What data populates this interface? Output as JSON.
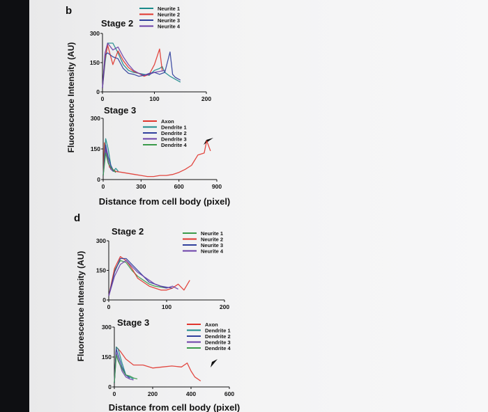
{
  "panels": [
    {
      "letter": "b",
      "ylabel": "Fluorescence Intensity (AU)",
      "xlabel": "Distance from cell body (pixel)"
    },
    {
      "letter": "d",
      "ylabel": "Fluorescence Intensity (AU)",
      "xlabel": "Distance from cell body (pixel)"
    }
  ],
  "chart_data": [
    {
      "type": "line",
      "panel": "b",
      "title": "Stage 2",
      "xlim": [
        0,
        200
      ],
      "ylim": [
        0,
        300
      ],
      "x_ticks": [
        "0",
        "100",
        "200"
      ],
      "y_ticks": [
        "0",
        "150",
        "300"
      ],
      "series": [
        {
          "name": "Neurite 1",
          "color": "#1a8a8a",
          "x": [
            0,
            5,
            10,
            20,
            30,
            40,
            50,
            60,
            70,
            80,
            90,
            100,
            110,
            115,
            120,
            130,
            140,
            150
          ],
          "y": [
            20,
            150,
            250,
            250,
            200,
            140,
            110,
            100,
            95,
            90,
            85,
            110,
            120,
            130,
            100,
            80,
            65,
            50
          ]
        },
        {
          "name": "Neurite 2",
          "color": "#e0342c",
          "x": [
            0,
            5,
            10,
            20,
            30,
            40,
            50,
            60,
            70,
            80,
            90,
            100,
            110,
            115
          ],
          "y": [
            20,
            170,
            240,
            140,
            210,
            160,
            125,
            105,
            95,
            80,
            90,
            140,
            220,
            110
          ]
        },
        {
          "name": "Neurite 3",
          "color": "#2f3f9c",
          "x": [
            0,
            5,
            10,
            20,
            30,
            40,
            50,
            60,
            70,
            80,
            90,
            100,
            110,
            120,
            130,
            135,
            140,
            150
          ],
          "y": [
            20,
            190,
            200,
            180,
            170,
            120,
            95,
            90,
            80,
            85,
            95,
            100,
            90,
            100,
            205,
            90,
            75,
            60
          ]
        },
        {
          "name": "Neurite 4",
          "color": "#6a3fa8",
          "x": [
            0,
            5,
            10,
            20,
            30,
            40,
            50,
            60,
            70,
            80,
            90,
            100,
            110,
            120
          ],
          "y": [
            20,
            200,
            250,
            215,
            230,
            180,
            140,
            110,
            95,
            85,
            90,
            100,
            105,
            110
          ]
        }
      ]
    },
    {
      "type": "line",
      "panel": "b",
      "title": "Stage 3",
      "xlim": [
        0,
        900
      ],
      "ylim": [
        0,
        300
      ],
      "x_ticks": [
        "0",
        "300",
        "600",
        "900"
      ],
      "y_ticks": [
        "0",
        "150",
        "300"
      ],
      "series": [
        {
          "name": "Axon",
          "color": "#e0342c",
          "x": [
            0,
            10,
            50,
            100,
            150,
            200,
            250,
            300,
            350,
            400,
            450,
            500,
            550,
            600,
            650,
            700,
            750,
            800,
            820,
            850
          ],
          "y": [
            20,
            180,
            60,
            40,
            35,
            30,
            25,
            20,
            15,
            15,
            20,
            20,
            25,
            35,
            50,
            70,
            120,
            130,
            190,
            140
          ]
        },
        {
          "name": "Dendrite 1",
          "color": "#1a8a8a",
          "x": [
            0,
            20,
            40,
            60,
            80,
            100,
            120
          ],
          "y": [
            20,
            200,
            150,
            70,
            40,
            55,
            40
          ]
        },
        {
          "name": "Dendrite 2",
          "color": "#2f3f9c",
          "x": [
            0,
            20,
            40,
            60,
            80,
            100
          ],
          "y": [
            20,
            170,
            110,
            70,
            45,
            35
          ]
        },
        {
          "name": "Dendrite 3",
          "color": "#6a3fa8",
          "x": [
            0,
            20,
            40,
            60,
            80
          ],
          "y": [
            20,
            150,
            90,
            50,
            40
          ]
        },
        {
          "name": "Dendrite 4",
          "color": "#3a9a4a",
          "x": [
            0,
            20,
            40,
            60,
            80,
            100
          ],
          "y": [
            20,
            130,
            80,
            60,
            45,
            35
          ]
        }
      ]
    },
    {
      "type": "line",
      "panel": "d",
      "title": "Stage 2",
      "xlim": [
        0,
        200
      ],
      "ylim": [
        0,
        300
      ],
      "x_ticks": [
        "0",
        "100",
        "200"
      ],
      "y_ticks": [
        "0",
        "150",
        "300"
      ],
      "series": [
        {
          "name": "Neurite 1",
          "color": "#3a9a4a",
          "x": [
            0,
            10,
            20,
            30,
            40,
            50,
            60,
            70,
            80,
            90,
            100
          ],
          "y": [
            20,
            150,
            200,
            190,
            150,
            120,
            100,
            80,
            70,
            65,
            60
          ]
        },
        {
          "name": "Neurite 2",
          "color": "#e0342c",
          "x": [
            0,
            10,
            20,
            30,
            40,
            50,
            60,
            70,
            80,
            90,
            100,
            110,
            120,
            130,
            140
          ],
          "y": [
            20,
            160,
            220,
            200,
            160,
            110,
            90,
            70,
            60,
            50,
            50,
            60,
            80,
            50,
            100
          ]
        },
        {
          "name": "Neurite 3",
          "color": "#2f3f9c",
          "x": [
            0,
            10,
            20,
            30,
            40,
            50,
            60,
            70,
            80,
            90,
            100,
            110
          ],
          "y": [
            20,
            140,
            210,
            210,
            180,
            150,
            120,
            90,
            80,
            70,
            65,
            60
          ]
        },
        {
          "name": "Neurite 4",
          "color": "#6a3fa8",
          "x": [
            0,
            10,
            20,
            30,
            40,
            50,
            60,
            70,
            80,
            90,
            100,
            110,
            120
          ],
          "y": [
            20,
            120,
            180,
            200,
            170,
            140,
            120,
            100,
            80,
            70,
            60,
            70,
            55
          ]
        }
      ]
    },
    {
      "type": "line",
      "panel": "d",
      "title": "Stage 3",
      "xlim": [
        0,
        600
      ],
      "ylim": [
        0,
        300
      ],
      "x_ticks": [
        "0",
        "200",
        "400",
        "600"
      ],
      "y_ticks": [
        "0",
        "150",
        "300"
      ],
      "series": [
        {
          "name": "Axon",
          "color": "#e0342c",
          "x": [
            0,
            10,
            30,
            60,
            100,
            150,
            200,
            250,
            300,
            350,
            380,
            400,
            420,
            450
          ],
          "y": [
            20,
            200,
            180,
            140,
            110,
            110,
            95,
            100,
            105,
            100,
            120,
            80,
            50,
            30
          ]
        },
        {
          "name": "Dendrite 1",
          "color": "#1a8a8a",
          "x": [
            0,
            10,
            20,
            40,
            60,
            80,
            100
          ],
          "y": [
            20,
            200,
            190,
            120,
            60,
            50,
            40
          ]
        },
        {
          "name": "Dendrite 2",
          "color": "#2f3f9c",
          "x": [
            0,
            10,
            20,
            40,
            60,
            80
          ],
          "y": [
            20,
            190,
            160,
            100,
            60,
            45
          ]
        },
        {
          "name": "Dendrite 3",
          "color": "#6a3fa8",
          "x": [
            0,
            10,
            20,
            40,
            60,
            80,
            100
          ],
          "y": [
            20,
            170,
            140,
            80,
            50,
            40,
            35
          ]
        },
        {
          "name": "Dendrite 4",
          "color": "#3a9a4a",
          "x": [
            0,
            10,
            20,
            40,
            60,
            80,
            100,
            120
          ],
          "y": [
            20,
            160,
            130,
            90,
            60,
            55,
            45,
            40
          ]
        }
      ]
    }
  ]
}
